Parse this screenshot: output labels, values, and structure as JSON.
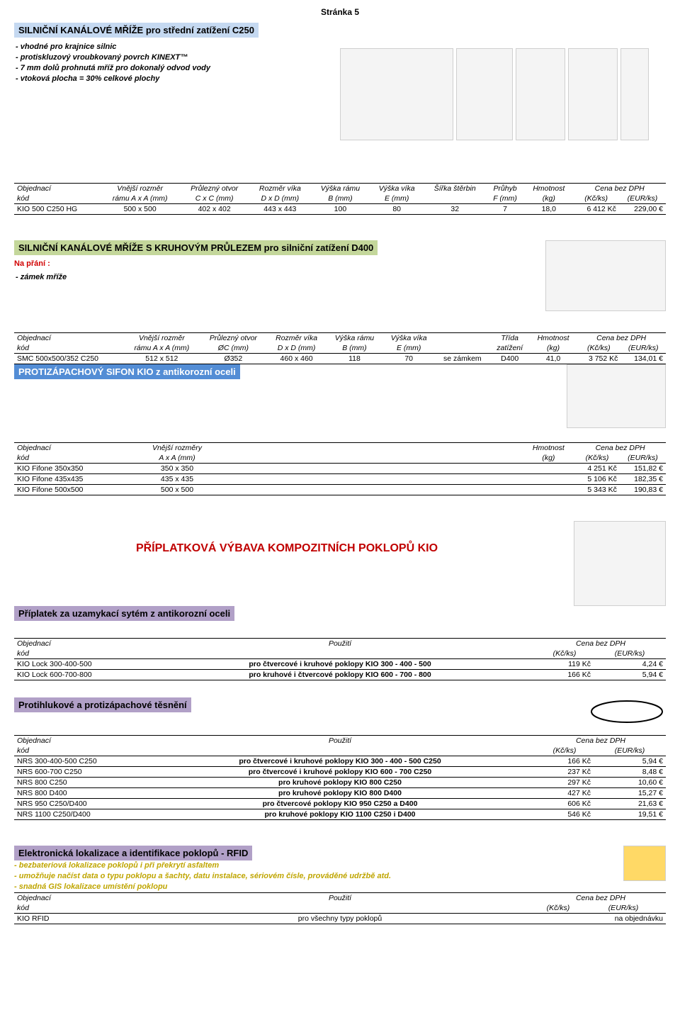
{
  "page_label": "Stránka 5",
  "s1": {
    "title": "SILNIČNÍ KANÁLOVÉ MŘÍŽE pro střední zatížení C250",
    "bullets": [
      "- vhodné pro krajnice silnic",
      "- protiskluzový vroubkovaný povrch KINEXT™",
      "- 7 mm dolů prohnutá mříž pro dokonalý odvod vody",
      "- vtoková plocha = 30% celkové plochy"
    ],
    "head1": [
      "Objednací",
      "Vnější rozměr",
      "Průlezný otvor",
      "Rozměr víka",
      "Výška rámu",
      "Výška víka",
      "Šířka štěrbin",
      "Průhyb",
      "Hmotnost",
      "Cena bez DPH"
    ],
    "head2": [
      "kód",
      "rámu A x A (mm)",
      "C x C (mm)",
      "D x D (mm)",
      "B (mm)",
      "E (mm)",
      "",
      "F (mm)",
      "(kg)",
      "(Kč/ks)",
      "(EUR/ks)"
    ],
    "row": [
      "KIO 500 C250 HG",
      "500 x 500",
      "402 x 402",
      "443 x 443",
      "100",
      "80",
      "32",
      "7",
      "18,0",
      "6 412 Kč",
      "229,00 €"
    ]
  },
  "s2": {
    "title": "SILNIČNÍ KANÁLOVÉ MŘÍŽE S KRUHOVÝM PRŮLEZEM pro silniční zatížení D400",
    "wish_label": "Na přání :",
    "wish_item": "- zámek mříže",
    "head1": [
      "Objednací",
      "Vnější rozměr",
      "Průlezný otvor",
      "Rozměr víka",
      "Výška rámu",
      "Výška víka",
      "",
      "Třída",
      "Hmotnost",
      "Cena bez DPH"
    ],
    "head2": [
      "kód",
      "rámu A x A (mm)",
      "ØC (mm)",
      "D x D (mm)",
      "B (mm)",
      "E (mm)",
      "",
      "zatížení",
      "(kg)",
      "(Kč/ks)",
      "(EUR/ks)"
    ],
    "row": [
      "SMC 500x500/352 C250",
      "512 x 512",
      "Ø352",
      "460 x 460",
      "118",
      "70",
      "se zámkem",
      "D400",
      "41,0",
      "3 752 Kč",
      "134,01 €"
    ]
  },
  "s3": {
    "title": "PROTIZÁPACHOVÝ SIFON KIO z antikorozní oceli",
    "head1": [
      "Objednací",
      "Vnější rozměry",
      "Hmotnost",
      "Cena bez DPH"
    ],
    "head2": [
      "kód",
      "A x A (mm)",
      "(kg)",
      "(Kč/ks)",
      "(EUR/ks)"
    ],
    "rows": [
      [
        "KIO Fifone 350x350",
        "350 x 350",
        "",
        "4 251 Kč",
        "151,82 €"
      ],
      [
        "KIO Fifone 435x435",
        "435 x 435",
        "",
        "5 106 Kč",
        "182,35 €"
      ],
      [
        "KIO Fifone 500x500",
        "500 x 500",
        "",
        "5 343 Kč",
        "190,83 €"
      ]
    ]
  },
  "mid_title": "PŘÍPLATKOVÁ VÝBAVA KOMPOZITNÍCH POKLOPŮ KIO",
  "s4": {
    "title": "Příplatek za uzamykací sytém z antikorozní oceli",
    "head1": [
      "Objednací",
      "Použití",
      "Cena bez DPH"
    ],
    "head2": [
      "kód",
      "",
      "(Kč/ks)",
      "(EUR/ks)"
    ],
    "rows": [
      [
        "KIO Lock 300-400-500",
        "pro čtvercové i kruhové poklopy KIO 300 - 400 - 500",
        "119 Kč",
        "4,24 €"
      ],
      [
        "KIO Lock 600-700-800",
        "pro kruhové i čtvercové poklopy KIO 600 - 700 - 800",
        "166 Kč",
        "5,94 €"
      ]
    ]
  },
  "s5": {
    "title": "Protihlukové a protizápachové těsnění",
    "head1": [
      "Objednací",
      "Použití",
      "Cena bez DPH"
    ],
    "head2": [
      "kód",
      "",
      "(Kč/ks)",
      "(EUR/ks)"
    ],
    "rows": [
      [
        "NRS 300-400-500 C250",
        "pro čtvercové i kruhové poklopy KIO 300 - 400 - 500 C250",
        "166 Kč",
        "5,94 €"
      ],
      [
        "NRS 600-700 C250",
        "pro čtvercové i kruhové poklopy KIO 600 - 700 C250",
        "237 Kč",
        "8,48 €"
      ],
      [
        "NRS 800 C250",
        "pro kruhové poklopy KIO 800 C250",
        "297 Kč",
        "10,60 €"
      ],
      [
        "NRS 800 D400",
        "pro kruhové poklopy KIO 800 D400",
        "427 Kč",
        "15,27 €"
      ],
      [
        "NRS 950 C250/D400",
        "pro čtvercové poklopy KIO 950 C250 a D400",
        "606 Kč",
        "21,63 €"
      ],
      [
        "NRS 1100 C250/D400",
        "pro kruhové poklopy KIO 1100 C250 i D400",
        "546 Kč",
        "19,51 €"
      ]
    ]
  },
  "s6": {
    "title": "Elektronická lokalizace a identifikace poklopů - RFID",
    "notes": [
      "- bezbateriová lokalizace poklopů i při překrytí asfaltem",
      "- umožňuje načíst data o typu poklopu a šachty, datu instalace, sériovém čísle, prováděné udržbě atd.",
      "- snadná GIS lokalizace umístění poklopu"
    ],
    "head1": [
      "Objednací",
      "Použití",
      "Cena bez DPH"
    ],
    "head2": [
      "kód",
      "",
      "(Kč/ks)",
      "(EUR/ks)"
    ],
    "row": [
      "KIO RFID",
      "pro všechny typy poklopů",
      "",
      "na objednávku"
    ]
  }
}
